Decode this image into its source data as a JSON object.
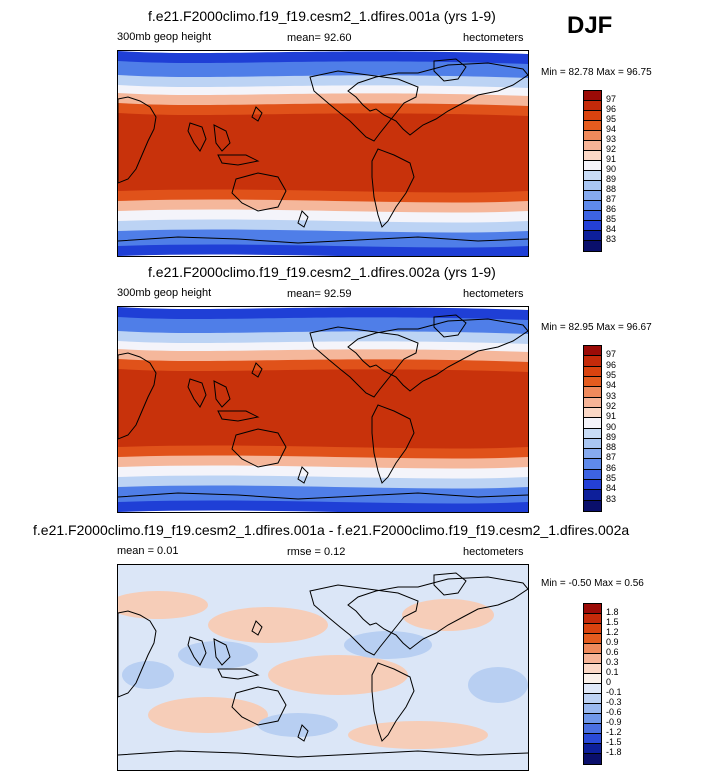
{
  "season": "DJF",
  "panels": [
    {
      "title": "f.e21.F2000climo.f19_f19.cesm2_1.dfires.001a (yrs 1-9)",
      "left_label": "300mb geop height",
      "mean_label": "mean=  92.60",
      "units": "hectometers",
      "minmax": "Min = 82.78 Max = 96.75",
      "colorbar": {
        "labels": [
          "97",
          "96",
          "95",
          "94",
          "93",
          "92",
          "91",
          "90",
          "89",
          "88",
          "87",
          "86",
          "85",
          "84",
          "83"
        ],
        "colors": [
          "#9b0b07",
          "#c42a0a",
          "#d9430f",
          "#e45c1f",
          "#ef8a5c",
          "#f6b497",
          "#fbd8c6",
          "#f4f4fa",
          "#c8dcf6",
          "#a9c6f2",
          "#86aaee",
          "#5f8aea",
          "#3d63e2",
          "#2440d6",
          "#0d1f9a",
          "#0a0f6b"
        ]
      },
      "map_type": "geopotential"
    },
    {
      "title": "f.e21.F2000climo.f19_f19.cesm2_1.dfires.002a (yrs 1-9)",
      "left_label": "300mb geop height",
      "mean_label": "mean=  92.59",
      "units": "hectometers",
      "minmax": "Min = 82.95 Max = 96.67",
      "colorbar": {
        "labels": [
          "97",
          "96",
          "95",
          "94",
          "93",
          "92",
          "91",
          "90",
          "89",
          "88",
          "87",
          "86",
          "85",
          "84",
          "83"
        ],
        "colors": [
          "#9b0b07",
          "#c42a0a",
          "#d9430f",
          "#e45c1f",
          "#ef8a5c",
          "#f6b497",
          "#fbd8c6",
          "#f4f4fa",
          "#c8dcf6",
          "#a9c6f2",
          "#86aaee",
          "#5f8aea",
          "#3d63e2",
          "#2440d6",
          "#0d1f9a",
          "#0a0f6b"
        ]
      },
      "map_type": "geopotential"
    },
    {
      "title": "f.e21.F2000climo.f19_f19.cesm2_1.dfires.001a - f.e21.F2000climo.f19_f19.cesm2_1.dfires.002a",
      "left_label": "mean =   0.01",
      "mean_label": "rmse =   0.12",
      "units": "hectometers",
      "minmax": "Min = -0.50 Max =   0.56",
      "colorbar": {
        "labels": [
          "1.8",
          "1.5",
          "1.2",
          "0.9",
          "0.6",
          "0.3",
          "0.1",
          "0",
          "-0.1",
          "-0.3",
          "-0.6",
          "-0.9",
          "-1.2",
          "-1.5",
          "-1.8"
        ],
        "colors": [
          "#9b0b07",
          "#c42a0a",
          "#d9430f",
          "#e45c1f",
          "#ef8a5c",
          "#f6b497",
          "#fbd8c6",
          "#faf1ea",
          "#dfe8f8",
          "#bdd2f4",
          "#9ab9f0",
          "#7098ea",
          "#4a70e2",
          "#2a4ad8",
          "#0d1f9a",
          "#0a0f6b"
        ]
      },
      "map_type": "difference"
    }
  ],
  "colors": {
    "deep_blue": "#1f3fd6",
    "mid_blue": "#4f7ee8",
    "light_blue": "#bcd3f4",
    "white": "#f4f4fa",
    "light_red": "#f5b79b",
    "mid_red": "#e0521a",
    "deep_red": "#c8320b",
    "diff_bg": "#dbe6f7",
    "diff_pos": "#f6cdb8",
    "diff_neg": "#b8cff2"
  }
}
